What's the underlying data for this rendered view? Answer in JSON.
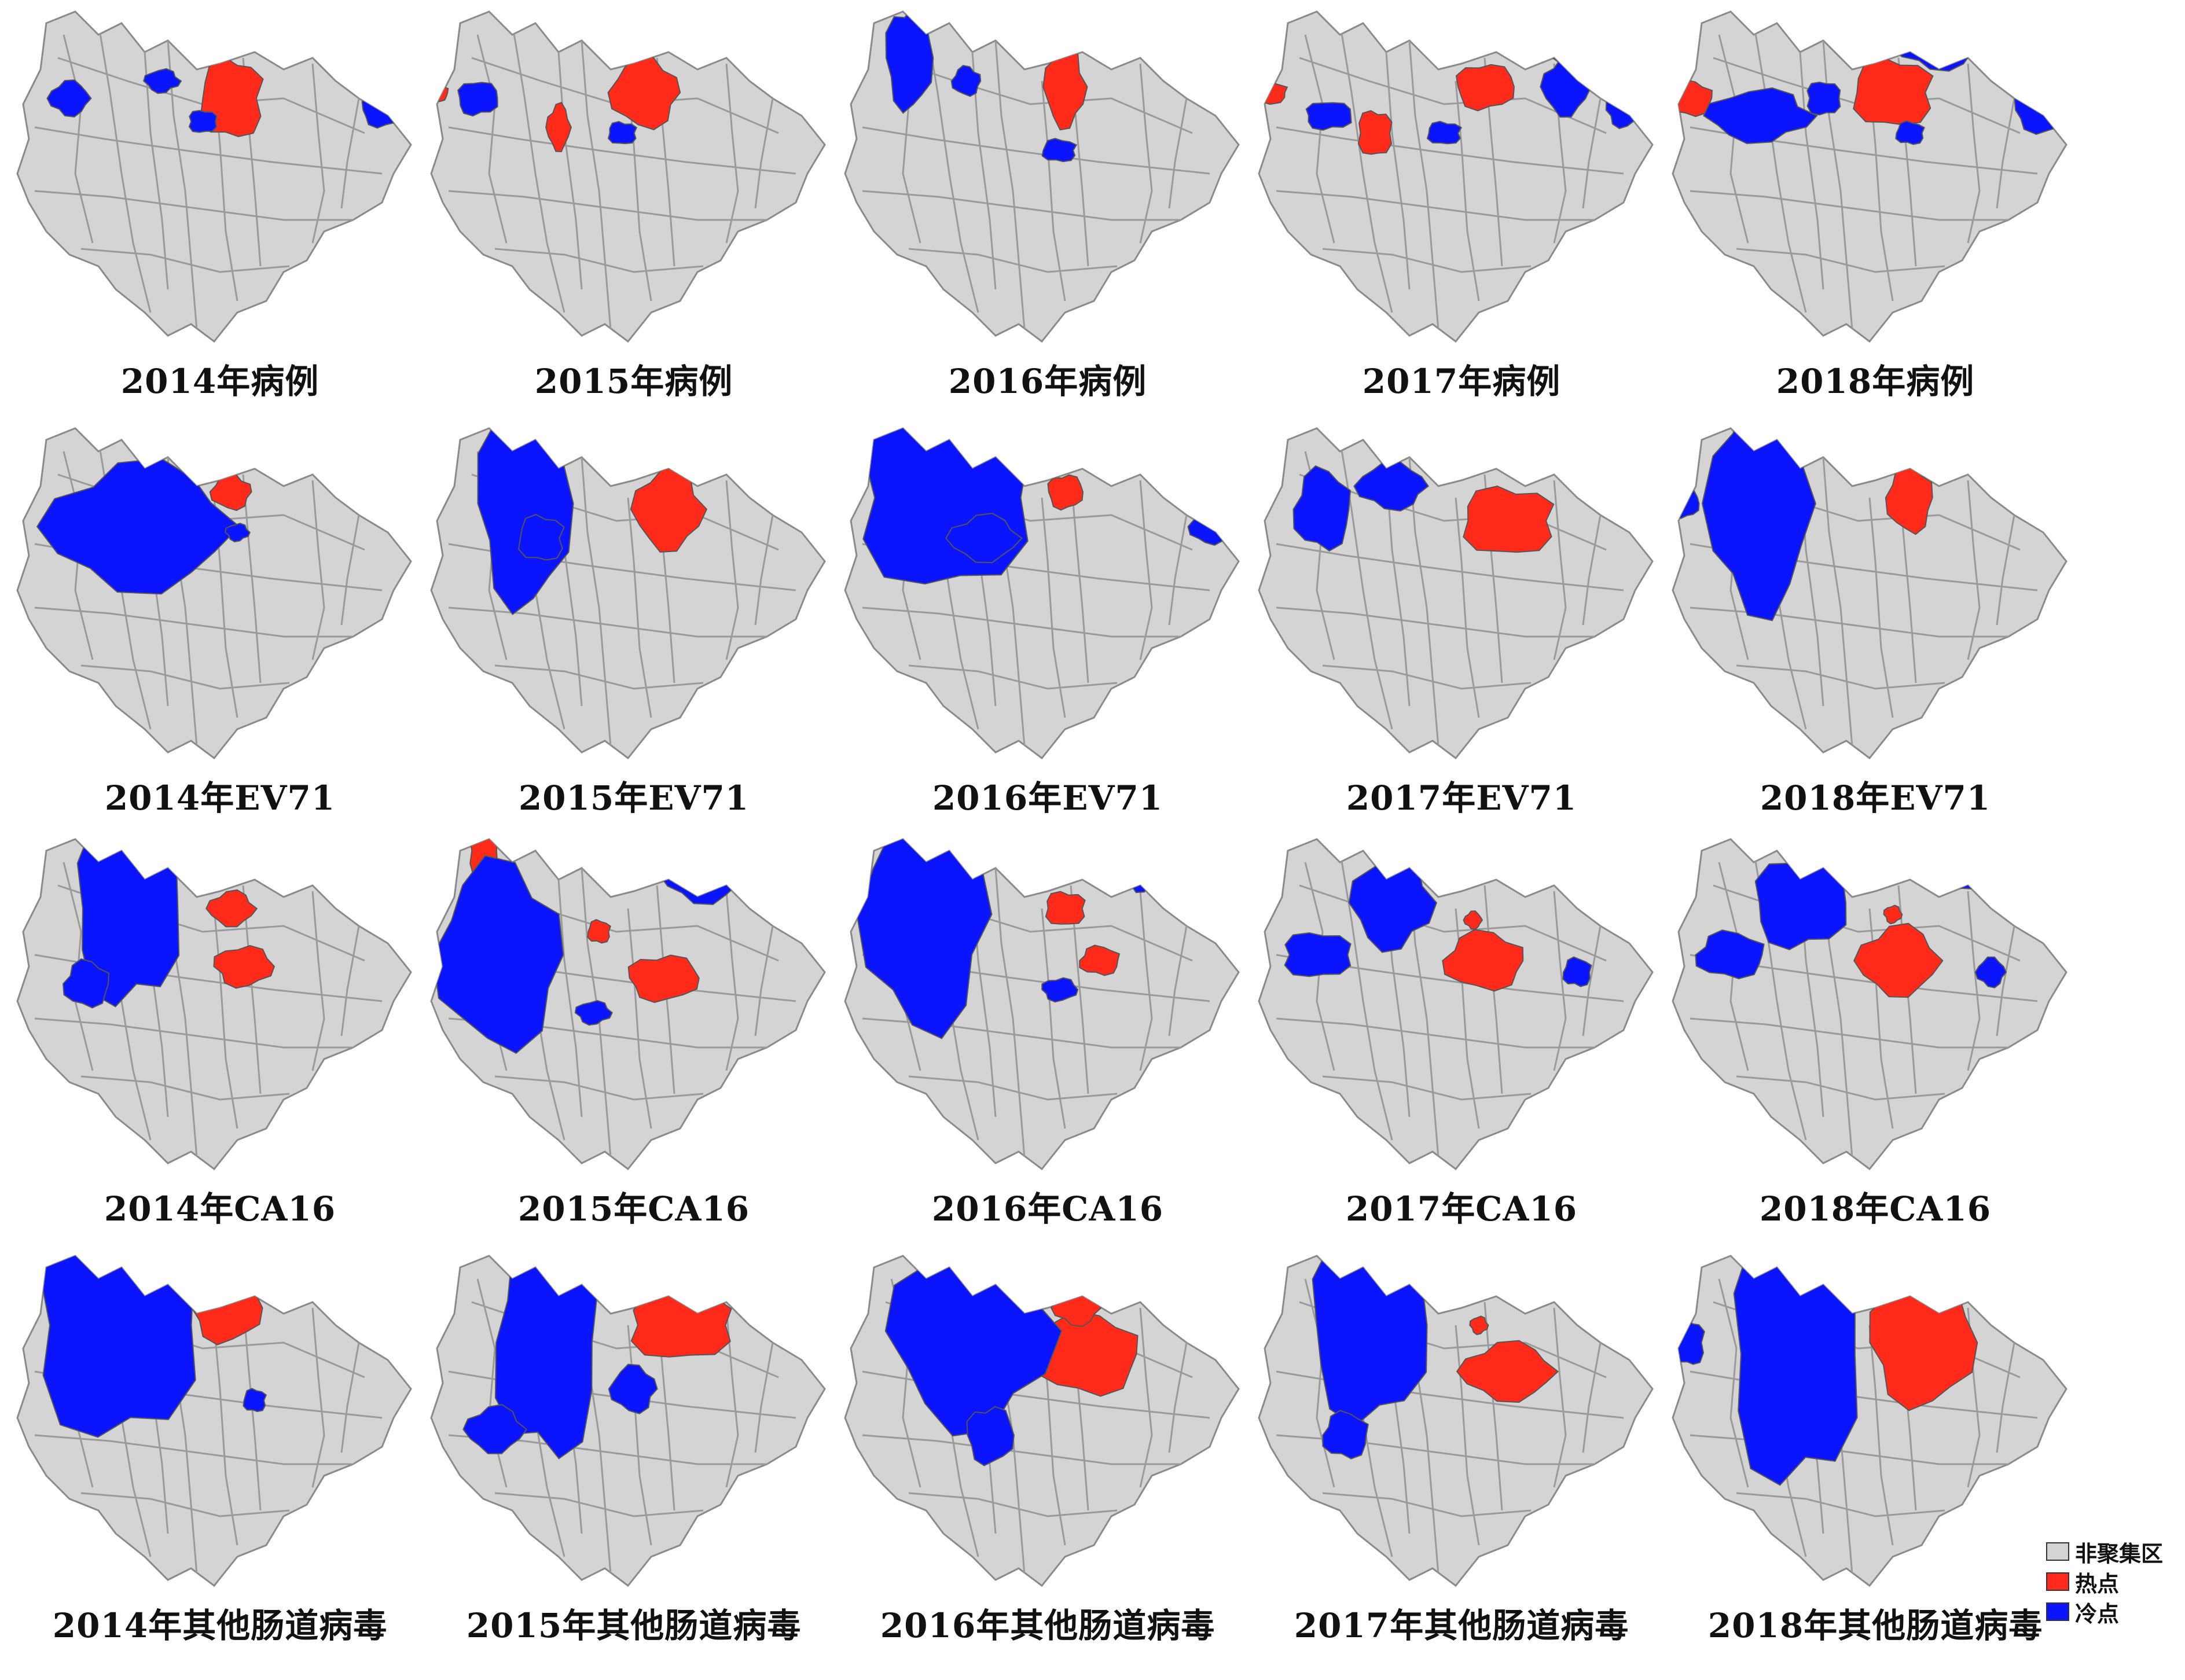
{
  "colors": {
    "non_cluster": "#d4d4d4",
    "hotspot": "#ff2a1a",
    "coldspot": "#0a14ff",
    "border": "#9a9a9a"
  },
  "legend": [
    {
      "label": "非聚集区",
      "color": "#d4d4d4"
    },
    {
      "label": "热点",
      "color": "#ff2a1a"
    },
    {
      "label": "冷点",
      "color": "#0a14ff"
    }
  ],
  "panels": [
    {
      "caption": "2014年病例",
      "row": 0,
      "col": 0
    },
    {
      "caption": "2015年病例",
      "row": 0,
      "col": 1
    },
    {
      "caption": "2016年病例",
      "row": 0,
      "col": 2
    },
    {
      "caption": "2017年病例",
      "row": 0,
      "col": 3
    },
    {
      "caption": "2018年病例",
      "row": 0,
      "col": 4
    },
    {
      "caption": "2014年EV71",
      "row": 1,
      "col": 0
    },
    {
      "caption": "2015年EV71",
      "row": 1,
      "col": 1
    },
    {
      "caption": "2016年EV71",
      "row": 1,
      "col": 2
    },
    {
      "caption": "2017年EV71",
      "row": 1,
      "col": 3
    },
    {
      "caption": "2018年EV71",
      "row": 1,
      "col": 4
    },
    {
      "caption": "2014年CA16",
      "row": 2,
      "col": 0
    },
    {
      "caption": "2015年CA16",
      "row": 2,
      "col": 1
    },
    {
      "caption": "2016年CA16",
      "row": 2,
      "col": 2
    },
    {
      "caption": "2017年CA16",
      "row": 2,
      "col": 3
    },
    {
      "caption": "2018年CA16",
      "row": 2,
      "col": 4
    },
    {
      "caption": "2014年其他肠道病毒",
      "row": 3,
      "col": 0
    },
    {
      "caption": "2015年其他肠道病毒",
      "row": 3,
      "col": 1
    },
    {
      "caption": "2016年其他肠道病毒",
      "row": 3,
      "col": 2
    },
    {
      "caption": "2017年其他肠道病毒",
      "row": 3,
      "col": 3
    },
    {
      "caption": "2018年其他肠道病毒",
      "row": 3,
      "col": 4
    }
  ]
}
